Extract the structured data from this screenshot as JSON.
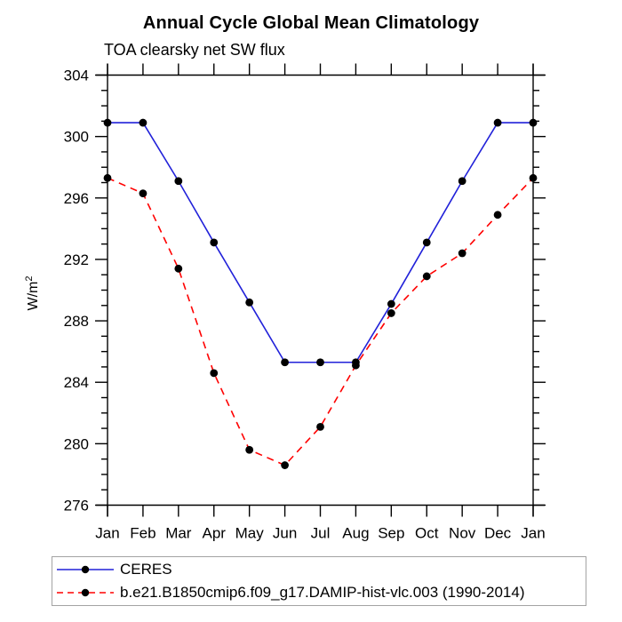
{
  "page": {
    "background": "#ffffff"
  },
  "chart": {
    "title": "Annual Cycle Global Mean Climatology",
    "subtitle": "TOA clearsky net SW flux",
    "ylabel_base": "W/m",
    "ylabel_sup": "2"
  },
  "chart_data": {
    "type": "line",
    "title": "Annual Cycle Global Mean Climatology",
    "subtitle": "TOA clearsky net SW flux",
    "xlabel": "",
    "ylabel": "W/m^2",
    "categories": [
      "Jan",
      "Feb",
      "Mar",
      "Apr",
      "May",
      "Jun",
      "Jul",
      "Aug",
      "Sep",
      "Oct",
      "Nov",
      "Dec",
      "Jan"
    ],
    "ylim": [
      276,
      304
    ],
    "ytick_major_step": 4,
    "ytick_minor_step": 1,
    "ytick_labels": [
      "276",
      "280",
      "284",
      "288",
      "292",
      "296",
      "300",
      "304"
    ],
    "grid": false,
    "legend_position": "bottom-left-boxed",
    "series": [
      {
        "name": "CERES",
        "line_color": "#2121d9",
        "line_style": "solid",
        "marker": "filled-circle",
        "marker_color": "#000000",
        "values": [
          300.9,
          300.9,
          297.1,
          293.1,
          289.2,
          285.3,
          285.3,
          285.3,
          289.1,
          293.1,
          297.1,
          300.9,
          300.9
        ]
      },
      {
        "name": "b.e21.B1850cmip6.f09_g17.DAMIP-hist-vlc.003 (1990-2014)",
        "line_color": "#ff0000",
        "line_style": "dashed",
        "marker": "filled-circle",
        "marker_color": "#000000",
        "values": [
          297.3,
          296.3,
          291.4,
          284.6,
          279.6,
          278.6,
          281.1,
          285.1,
          288.5,
          290.9,
          292.4,
          294.9,
          297.3
        ]
      }
    ]
  },
  "colors": {
    "axis": "#000000",
    "text": "#000000",
    "legend_border": "#a3a3a3"
  }
}
